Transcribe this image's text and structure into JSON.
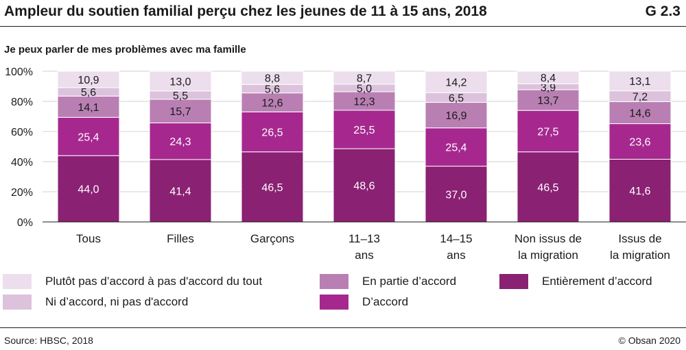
{
  "header": {
    "title": "Ampleur du soutien familial perçu chez les jeunes de 11 à 15 ans, 2018",
    "code": "G 2.3"
  },
  "chart_data": {
    "type": "bar",
    "stacked": true,
    "subtitle": "Je peux parler de mes problèmes avec ma famille",
    "categories": [
      "Tous",
      "Filles",
      "Garçons",
      "11–13 ans",
      "14–15 ans",
      "Non issus de la migration",
      "Issus de la migration"
    ],
    "category_lines": [
      [
        "Tous"
      ],
      [
        "Filles"
      ],
      [
        "Garçons"
      ],
      [
        "11–13",
        "ans"
      ],
      [
        "14–15",
        "ans"
      ],
      [
        "Non issus de",
        "la migration"
      ],
      [
        "Issus de",
        "la migration"
      ]
    ],
    "series": [
      {
        "name": "Entièrement d’accord",
        "color": "#8a2173",
        "values": [
          44.0,
          41.4,
          46.5,
          48.6,
          37.0,
          46.5,
          41.6
        ],
        "labels": [
          "44,0",
          "41,4",
          "46,5",
          "48,6",
          "37,0",
          "46,5",
          "41,6"
        ]
      },
      {
        "name": "D’accord",
        "color": "#a6288f",
        "values": [
          25.4,
          24.3,
          26.5,
          25.5,
          25.4,
          27.5,
          23.6
        ],
        "labels": [
          "25,4",
          "24,3",
          "26,5",
          "25,5",
          "25,4",
          "27,5",
          "23,6"
        ]
      },
      {
        "name": "En partie d’accord",
        "color": "#b97fb3",
        "values": [
          14.1,
          15.7,
          12.6,
          12.3,
          16.9,
          13.7,
          14.6
        ],
        "labels": [
          "14,1",
          "15,7",
          "12,6",
          "12,3",
          "16,9",
          "13,7",
          "14,6"
        ]
      },
      {
        "name": "Ni d’accord, ni pas d'accord",
        "color": "#dcc2dc",
        "values": [
          5.6,
          5.5,
          5.6,
          5.0,
          6.5,
          3.9,
          7.2
        ],
        "labels": [
          "5,6",
          "5,5",
          "5,6",
          "5,0",
          "6,5",
          "3,9",
          "7,2"
        ]
      },
      {
        "name": "Plutôt pas d’accord à pas d'accord du tout",
        "color": "#ecdeec",
        "values": [
          10.9,
          13.0,
          8.8,
          8.7,
          14.2,
          8.4,
          13.1
        ],
        "labels": [
          "10,9",
          "13,0",
          "8,8",
          "8,7",
          "14,2",
          "8,4",
          "13,1"
        ]
      }
    ],
    "y_ticks": [
      "0%",
      "20%",
      "40%",
      "60%",
      "80%",
      "100%"
    ],
    "ylim": [
      0,
      100
    ],
    "grid": true,
    "legend_position": "bottom"
  },
  "footer": {
    "source": "Source: HBSC, 2018",
    "copyright": "© Obsan 2020"
  }
}
